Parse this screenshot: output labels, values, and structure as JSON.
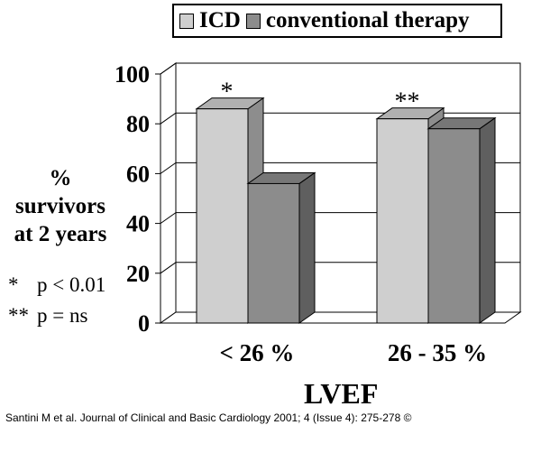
{
  "chart_data": {
    "type": "bar",
    "categories": [
      "< 26 %",
      "26 - 35 %"
    ],
    "series": [
      {
        "name": "ICD",
        "values": [
          86,
          82
        ],
        "color": "#cfcfcf"
      },
      {
        "name": "conventional therapy",
        "values": [
          56,
          78
        ],
        "color": "#8c8c8c"
      }
    ],
    "annotations": [
      "*",
      "**"
    ],
    "ylabel_lines": [
      "%",
      "survivors",
      "at 2 years"
    ],
    "xlabel": "LVEF",
    "ylim": [
      0,
      100
    ],
    "yticks": [
      0,
      20,
      40,
      60,
      80,
      100
    ],
    "grid": true,
    "legend_position": "top-right"
  },
  "legend": {
    "icd_label": "ICD",
    "conventional_label": "conventional therapy"
  },
  "notes": {
    "single_star_symbol": "*",
    "single_star_text": "p < 0.01",
    "double_star_symbol": "**",
    "double_star_text": "p = ns"
  },
  "citation": "Santini M et al. Journal of Clinical and Basic Cardiology 2001; 4 (Issue 4): 275-278 ©"
}
